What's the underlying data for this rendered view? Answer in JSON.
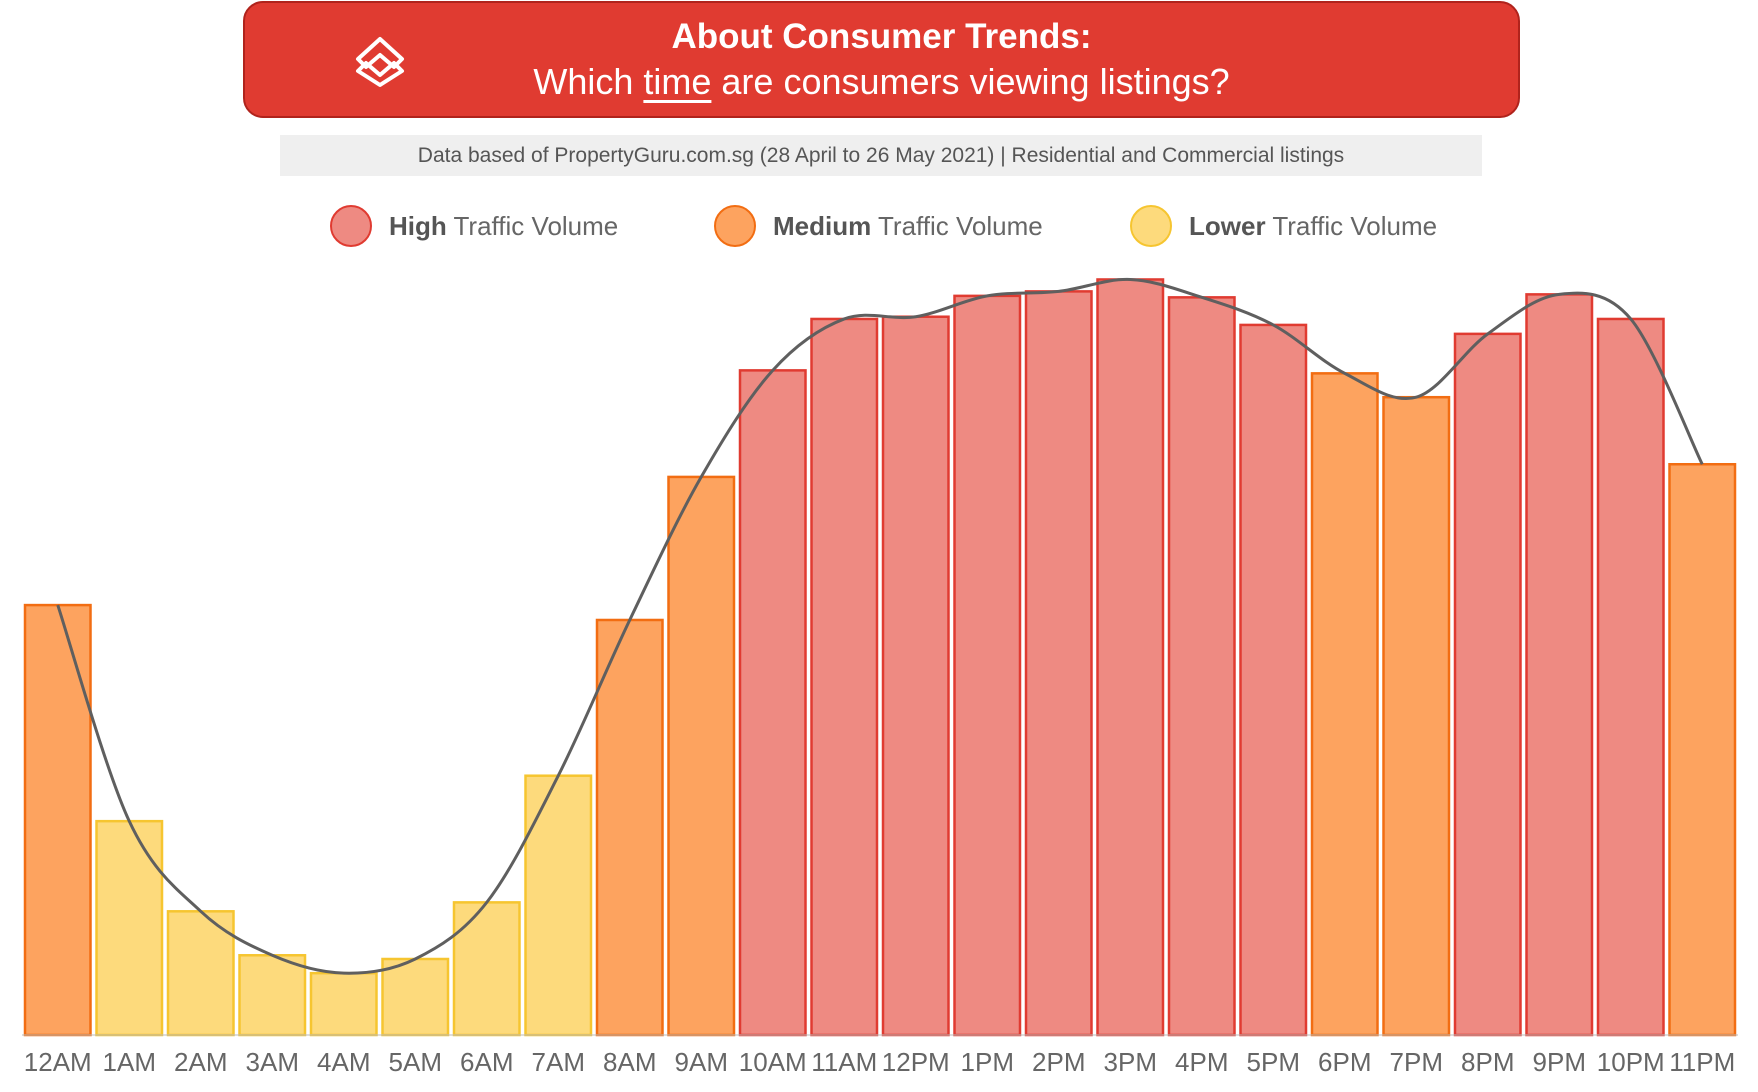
{
  "header": {
    "title": "About Consumer Trends:",
    "subtitle_pre": "Which ",
    "subtitle_em": "time",
    "subtitle_post": " are consumers viewing listings?"
  },
  "source_note": "Data based of PropertyGuru.com.sg (28 April to 26 May 2021) | Residential and Commercial listings",
  "legend": {
    "high": {
      "bold": "High",
      "rest": " Traffic Volume",
      "fill": "#ee8a82",
      "stroke": "#e03b31"
    },
    "medium": {
      "bold": "Medium",
      "rest": " Traffic Volume",
      "fill": "#fda35f",
      "stroke": "#f26d12"
    },
    "lower": {
      "bold": "Lower",
      "rest": " Traffic Volume",
      "fill": "#fdda7c",
      "stroke": "#f6c530"
    }
  },
  "chart_data": {
    "type": "bar",
    "categories": [
      "12AM",
      "1AM",
      "2AM",
      "3AM",
      "4AM",
      "5AM",
      "6AM",
      "7AM",
      "8AM",
      "9AM",
      "10AM",
      "11AM",
      "12PM",
      "1PM",
      "2PM",
      "3PM",
      "4PM",
      "5PM",
      "6PM",
      "7PM",
      "8PM",
      "9PM",
      "10PM",
      "11PM"
    ],
    "values": [
      57.7,
      28.7,
      16.6,
      10.7,
      8.3,
      10.2,
      17.8,
      34.8,
      55.7,
      74.9,
      89.2,
      96.1,
      96.4,
      99.2,
      99.8,
      101.4,
      99.0,
      95.3,
      88.8,
      85.6,
      94.1,
      99.4,
      96.1,
      76.6
    ],
    "traffic_levels": [
      "medium",
      "lower",
      "lower",
      "lower",
      "lower",
      "lower",
      "lower",
      "lower",
      "medium",
      "medium",
      "high",
      "high",
      "high",
      "high",
      "high",
      "high",
      "high",
      "high",
      "medium",
      "medium",
      "high",
      "high",
      "high",
      "medium"
    ],
    "trend_line": true,
    "ylim": [
      0,
      102
    ],
    "grid": false,
    "legend_position": "top"
  }
}
